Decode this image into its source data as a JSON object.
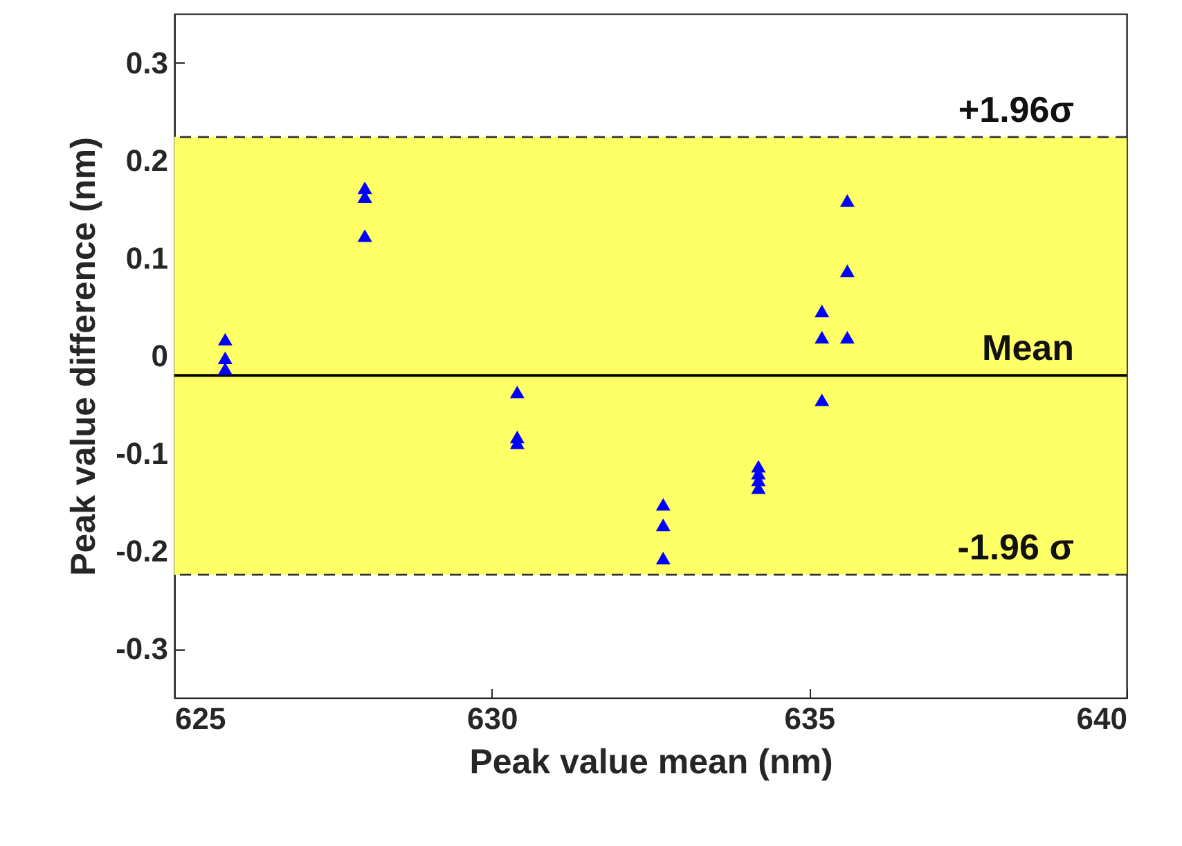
{
  "chart_data": {
    "type": "scatter",
    "xlabel": "Peak value mean (nm)",
    "ylabel": "Peak value difference (nm)",
    "x": [
      625.8,
      625.8,
      625.8,
      628.0,
      628.0,
      628.0,
      630.4,
      630.4,
      630.4,
      632.7,
      632.7,
      632.7,
      634.2,
      634.2,
      634.2,
      634.2,
      635.6,
      635.6,
      635.2,
      635.2,
      635.6,
      635.2
    ],
    "series": [
      {
        "color": "#0000ff",
        "values": [
          0.017,
          -0.002,
          -0.013,
          0.172,
          0.163,
          0.123,
          -0.037,
          -0.083,
          -0.089,
          -0.152,
          -0.173,
          -0.207,
          -0.113,
          -0.12,
          -0.127,
          -0.135,
          0.159,
          0.087,
          0.046,
          0.019,
          0.019,
          -0.045
        ]
      }
    ],
    "xlim": [
      625,
      640
    ],
    "xticks": [
      625,
      630,
      635,
      640
    ],
    "ylim": [
      -0.35,
      0.35
    ],
    "yticks": [
      -0.3,
      -0.2,
      -0.1,
      0,
      0.1,
      0.2,
      0.3
    ],
    "grid": false,
    "marker": "triangle",
    "ref_lines": [
      {
        "axis": "y",
        "value": 0.224,
        "label": "+1.96σ",
        "line_style": "dashed",
        "color": "#333333"
      },
      {
        "axis": "y",
        "value": -0.02,
        "label": "Mean",
        "line_style": "solid",
        "color": "#000000"
      },
      {
        "axis": "y",
        "value": -0.224,
        "label": "-1.96 σ",
        "line_style": "dashed",
        "color": "#333333"
      }
    ],
    "bands": [
      {
        "axis": "y",
        "from": -0.224,
        "to": 0.224,
        "color": "#ffff66"
      }
    ]
  }
}
